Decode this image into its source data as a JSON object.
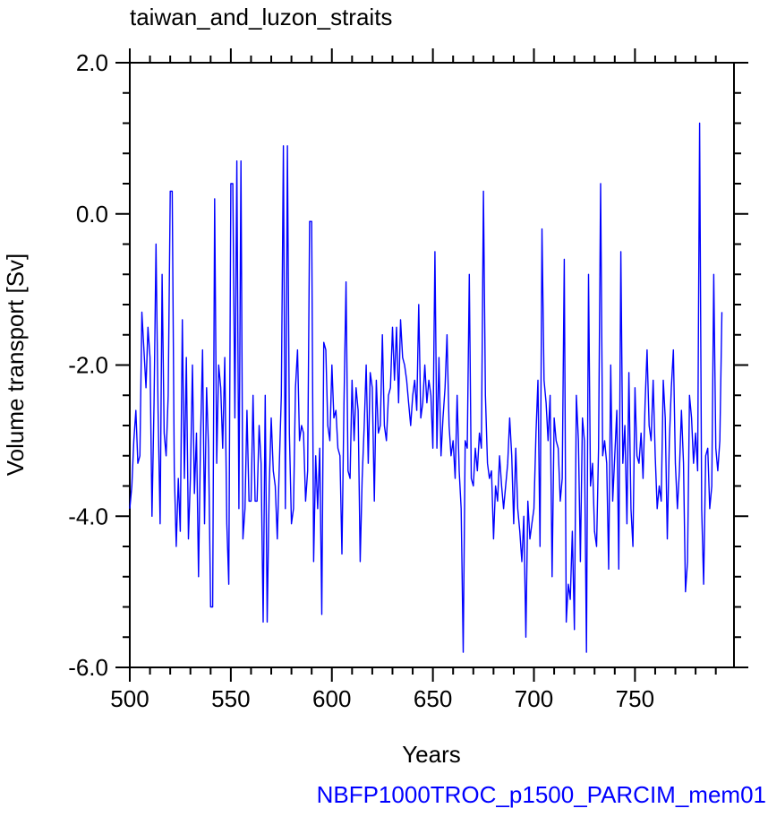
{
  "chart_data": {
    "type": "line",
    "title": "taiwan_and_luzon_straits",
    "xlabel": "Years",
    "ylabel": "Volume transport [Sv]",
    "xlim": [
      500,
      799
    ],
    "ylim": [
      -6.0,
      2.0
    ],
    "x_ticks": [
      500,
      550,
      600,
      650,
      700,
      750
    ],
    "x_tick_labels": [
      "500",
      "550",
      "600",
      "650",
      "700",
      "750"
    ],
    "y_ticks": [
      -6.0,
      -4.0,
      -2.0,
      0.0,
      2.0
    ],
    "y_tick_labels": [
      "-6.0",
      "-4.0",
      "-2.0",
      "0.0",
      "2.0"
    ],
    "grid": false,
    "line_color": "#0000ff",
    "x_start": 500,
    "x_step": 1,
    "series": [
      {
        "values": [
          -3.9,
          -3.6,
          -3.0,
          -2.6,
          -3.3,
          -3.2,
          -1.3,
          -1.8,
          -2.3,
          -1.5,
          -1.9,
          -4.0,
          -2.5,
          -0.4,
          -2.6,
          -4.1,
          -0.8,
          -2.9,
          -3.2,
          -2.4,
          0.3,
          -2.9,
          -3.4,
          -4.4,
          -3.5,
          -4.2,
          -1.4,
          -3.5,
          -1.9,
          -4.3,
          -3.5,
          -2.0,
          -3.7,
          -2.9,
          -4.8,
          -3.0,
          -1.8,
          -4.1,
          -2.3,
          -3.1,
          -5.2,
          -2.6,
          0.2,
          -3.3,
          -2.0,
          -2.3,
          -3.1,
          -1.9,
          -4.1,
          -4.9,
          0.4,
          -2.8,
          -2.7,
          0.7,
          -3.9,
          -3.1,
          -4.3,
          -3.9,
          -2.6,
          -3.8,
          -3.8,
          -2.4,
          -3.8,
          -3.8,
          -2.8,
          -3.3,
          -5.4,
          -2.4,
          -3.9,
          -3.6,
          -2.7,
          -3.4,
          -3.6,
          -4.3,
          -3.3,
          -2.4,
          0.9,
          -3.9,
          -3.5,
          -2.9,
          -4.1,
          -3.9,
          -2.3,
          -1.8,
          -3.0,
          -2.8,
          -2.9,
          -3.8,
          -3.4,
          -0.1,
          -3.1,
          -4.6,
          -3.2,
          -3.9,
          -3.1,
          -5.3,
          -1.7,
          -1.8,
          -2.8,
          -3.0,
          -2.0,
          -2.7,
          -2.6,
          -3.1,
          -3.2,
          -4.5,
          -2.5,
          -0.9,
          -3.4,
          -3.5,
          -2.2,
          -3.0,
          -2.3,
          -2.6,
          -4.6,
          -3.5,
          -2.8,
          -2.0,
          -3.3,
          -2.1,
          -2.3,
          -3.8,
          -2.2,
          -2.9,
          -2.8,
          -1.6,
          -2.8,
          -3.0,
          -2.4,
          -2.3,
          -1.5,
          -2.2,
          -1.5,
          -2.5,
          -1.4,
          -1.9,
          -2.0,
          -2.2,
          -2.5,
          -2.8,
          -2.4,
          -2.2,
          -2.6,
          -1.2,
          -2.7,
          -2.5,
          -2.0,
          -2.5,
          -2.2,
          -2.4,
          -3.1,
          -0.5,
          -3.1,
          -1.9,
          -3.2,
          -2.7,
          -2.3,
          -1.6,
          -2.8,
          -3.2,
          -3.0,
          -3.5,
          -2.4,
          -3.4,
          -3.9,
          -3.6,
          -3.0,
          -3.1,
          -0.8,
          -3.5,
          -3.6,
          -3.1,
          -3.4,
          -2.9,
          -3.1,
          -3.2,
          -2.4,
          -3.3,
          -3.5,
          -3.4,
          -4.3,
          -3.6,
          -3.8,
          -3.2,
          -3.6,
          -3.9,
          -3.6,
          -3.3,
          -2.7,
          -3.2,
          -4.1,
          -3.1,
          -3.9,
          -4.2,
          -4.6,
          -4.0,
          -4.4,
          -3.8,
          -4.3,
          -4.1,
          -3.9,
          -2.9,
          -2.2,
          -4.4,
          -3.1,
          -2.2,
          -2.5,
          -3.0,
          -2.4,
          -3.1,
          -2.7,
          -3.0,
          -3.1,
          -3.8,
          -3.5,
          -4.1,
          -3.6,
          -4.9,
          -5.1,
          -4.2,
          -2.8,
          -2.4,
          -3.0,
          -4.6,
          -2.7,
          -3.0,
          -5.8,
          -3.4,
          -3.6,
          -3.3,
          -4.2,
          -4.4,
          -3.1,
          -3.7,
          -3.2,
          -3.0,
          -3.3,
          -4.7,
          -1.7,
          -3.8,
          -3.2,
          -2.6,
          -4.7,
          -3.0,
          -3.3,
          -2.8,
          -4.1,
          -2.1,
          -3.9,
          -4.4,
          -2.3,
          -3.2,
          -3.3,
          -2.9,
          -3.5,
          -2.5,
          -1.8,
          -2.8,
          -3.0,
          -2.2,
          -3.2,
          -3.9,
          -3.6,
          -3.8,
          -2.2,
          -2.7,
          -4.3,
          -3.0,
          -2.3,
          -1.8,
          -3.3,
          -3.9,
          -3.4,
          -2.6,
          -3.3,
          -3.0,
          -4.6,
          -2.4,
          -2.7,
          -3.3,
          -2.9,
          -3.4,
          -2.8,
          -3.9,
          -3.7,
          -3.2,
          -3.1,
          -3.9,
          -3.6,
          -2.5,
          -3.1,
          -3.4,
          -3.0
        ],
        "overrides": [
          [
            513,
            -0.4
          ],
          [
            521,
            0.3
          ],
          [
            542,
            0.2
          ],
          [
            551,
            0.4
          ],
          [
            555,
            0.7
          ],
          [
            578,
            0.9
          ],
          [
            590,
            -0.1
          ],
          [
            675,
            0.3
          ],
          [
            704,
            -0.2
          ],
          [
            715,
            -0.6
          ],
          [
            727,
            -0.8
          ],
          [
            733,
            0.4
          ],
          [
            738,
            -2.0
          ],
          [
            743,
            -0.5
          ],
          [
            782,
            1.2
          ],
          [
            789,
            -0.8
          ],
          [
            793,
            -1.3
          ],
          [
            541,
            -5.2
          ],
          [
            568,
            -5.4
          ],
          [
            595,
            -5.3
          ],
          [
            665,
            -5.8
          ],
          [
            696,
            -5.6
          ],
          [
            716,
            -5.4
          ],
          [
            720,
            -5.5
          ],
          [
            784,
            -4.9
          ],
          [
            775,
            -5.0
          ],
          [
            709,
            -4.8
          ]
        ]
      }
    ],
    "footer": "NBFP1000TROC_p1500_PARCIM_mem01"
  }
}
